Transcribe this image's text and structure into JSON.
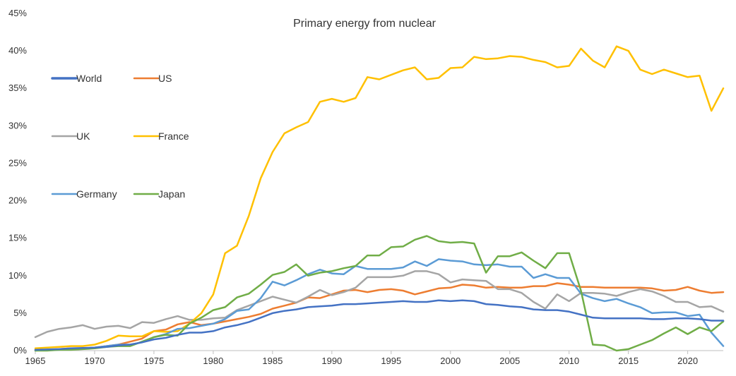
{
  "chart_data": {
    "type": "line",
    "title": "Primary energy from nuclear",
    "xlabel": "",
    "ylabel": "",
    "xlim": [
      1965,
      2023
    ],
    "ylim": [
      0,
      45
    ],
    "x_ticks": [
      1965,
      1970,
      1975,
      1980,
      1985,
      1990,
      1995,
      2000,
      2005,
      2010,
      2015,
      2020
    ],
    "y_ticks": [
      {
        "value": 0,
        "label": "0%"
      },
      {
        "value": 5,
        "label": "5%"
      },
      {
        "value": 10,
        "label": "10%"
      },
      {
        "value": 15,
        "label": "15%"
      },
      {
        "value": 20,
        "label": "20%"
      },
      {
        "value": 25,
        "label": "25%"
      },
      {
        "value": 30,
        "label": "30%"
      },
      {
        "value": 35,
        "label": "35%"
      },
      {
        "value": 40,
        "label": "40%"
      },
      {
        "value": 45,
        "label": "45%"
      }
    ],
    "grid": false,
    "legend_position": "left",
    "x": [
      1965,
      1966,
      1967,
      1968,
      1969,
      1970,
      1971,
      1972,
      1973,
      1974,
      1975,
      1976,
      1977,
      1978,
      1979,
      1980,
      1981,
      1982,
      1983,
      1984,
      1985,
      1986,
      1987,
      1988,
      1989,
      1990,
      1991,
      1992,
      1993,
      1994,
      1995,
      1996,
      1997,
      1998,
      1999,
      2000,
      2001,
      2002,
      2003,
      2004,
      2005,
      2006,
      2007,
      2008,
      2009,
      2010,
      2011,
      2012,
      2013,
      2014,
      2015,
      2016,
      2017,
      2018,
      2019,
      2020,
      2021,
      2022,
      2023
    ],
    "series": [
      {
        "name": "World",
        "color": "#4472c4",
        "width": 3.5,
        "values": [
          0.1,
          0.15,
          0.2,
          0.3,
          0.35,
          0.4,
          0.5,
          0.7,
          0.8,
          1.1,
          1.5,
          1.7,
          2.1,
          2.4,
          2.4,
          2.6,
          3.1,
          3.4,
          3.8,
          4.4,
          5.0,
          5.3,
          5.5,
          5.8,
          5.9,
          6.0,
          6.2,
          6.2,
          6.3,
          6.4,
          6.5,
          6.6,
          6.5,
          6.5,
          6.7,
          6.6,
          6.7,
          6.6,
          6.2,
          6.1,
          5.9,
          5.8,
          5.5,
          5.4,
          5.4,
          5.2,
          4.8,
          4.4,
          4.3,
          4.3,
          4.3,
          4.3,
          4.2,
          4.2,
          4.3,
          4.3,
          4.2,
          4.0,
          4.0
        ]
      },
      {
        "name": "US",
        "color": "#ed7d31",
        "width": 2.5,
        "values": [
          0.1,
          0.1,
          0.2,
          0.3,
          0.3,
          0.4,
          0.6,
          0.8,
          1.2,
          1.6,
          2.6,
          2.8,
          3.5,
          3.8,
          3.4,
          3.6,
          3.9,
          4.2,
          4.5,
          4.9,
          5.6,
          6.0,
          6.4,
          7.1,
          7.0,
          7.5,
          8.0,
          8.1,
          7.8,
          8.1,
          8.2,
          8.0,
          7.5,
          7.9,
          8.3,
          8.4,
          8.8,
          8.7,
          8.4,
          8.5,
          8.4,
          8.4,
          8.6,
          8.6,
          9.0,
          8.8,
          8.5,
          8.5,
          8.4,
          8.4,
          8.4,
          8.4,
          8.3,
          8.0,
          8.1,
          8.5,
          8.0,
          7.7,
          7.8
        ]
      },
      {
        "name": "UK",
        "color": "#a5a5a5",
        "width": 2.5,
        "values": [
          1.8,
          2.5,
          2.9,
          3.1,
          3.4,
          2.9,
          3.2,
          3.3,
          3.0,
          3.8,
          3.7,
          4.2,
          4.6,
          4.1,
          4.1,
          4.3,
          4.4,
          5.4,
          6.0,
          6.6,
          7.2,
          6.8,
          6.4,
          7.2,
          8.1,
          7.4,
          7.8,
          8.4,
          9.8,
          9.8,
          9.8,
          10.0,
          10.6,
          10.6,
          10.2,
          9.1,
          9.5,
          9.4,
          9.3,
          8.2,
          8.2,
          7.7,
          6.5,
          5.6,
          7.5,
          6.6,
          7.7,
          7.7,
          7.6,
          7.3,
          7.8,
          8.2,
          7.9,
          7.3,
          6.5,
          6.5,
          5.8,
          5.9,
          5.2
        ]
      },
      {
        "name": "France",
        "color": "#ffc000",
        "width": 2.5,
        "values": [
          0.3,
          0.4,
          0.5,
          0.6,
          0.6,
          0.8,
          1.3,
          2.0,
          1.9,
          1.9,
          2.6,
          2.5,
          2.6,
          3.6,
          5.0,
          7.5,
          13.0,
          14.0,
          18.0,
          23.0,
          26.5,
          29.0,
          29.8,
          30.5,
          33.2,
          33.6,
          33.2,
          33.7,
          36.5,
          36.2,
          36.8,
          37.4,
          37.8,
          36.2,
          36.4,
          37.7,
          37.8,
          39.2,
          38.9,
          39.0,
          39.3,
          39.2,
          38.8,
          38.5,
          37.8,
          38.0,
          40.3,
          38.7,
          37.8,
          40.6,
          40.0,
          37.5,
          36.9,
          37.5,
          37.0,
          36.5,
          36.7,
          32.0,
          35.0
        ]
      },
      {
        "name": "Germany",
        "color": "#5b9bd5",
        "width": 2.5,
        "values": [
          0.0,
          0.1,
          0.1,
          0.2,
          0.3,
          0.4,
          0.6,
          0.8,
          0.8,
          1.1,
          1.8,
          2.2,
          2.9,
          3.0,
          3.3,
          3.6,
          4.2,
          5.3,
          5.5,
          7.0,
          9.2,
          8.7,
          9.4,
          10.2,
          10.8,
          10.3,
          10.2,
          11.3,
          10.9,
          10.9,
          10.9,
          11.1,
          11.9,
          11.3,
          12.2,
          12.0,
          11.9,
          11.5,
          11.4,
          11.5,
          11.2,
          11.2,
          9.7,
          10.2,
          9.7,
          9.7,
          7.6,
          7.0,
          6.6,
          6.9,
          6.3,
          5.8,
          5.0,
          5.1,
          5.1,
          4.6,
          4.8,
          2.4,
          0.6
        ]
      },
      {
        "name": "Japan",
        "color": "#70ad47",
        "width": 2.5,
        "values": [
          0.0,
          0.0,
          0.1,
          0.1,
          0.2,
          0.3,
          0.5,
          0.6,
          0.6,
          1.2,
          1.8,
          2.1,
          2.0,
          3.6,
          4.4,
          5.4,
          5.8,
          7.1,
          7.6,
          8.8,
          10.1,
          10.5,
          11.5,
          10.0,
          10.4,
          10.6,
          11.0,
          11.3,
          12.7,
          12.7,
          13.8,
          13.9,
          14.8,
          15.3,
          14.6,
          14.4,
          14.5,
          14.3,
          10.4,
          12.6,
          12.6,
          13.1,
          12.0,
          11.0,
          13.0,
          13.0,
          8.0,
          0.8,
          0.7,
          0.0,
          0.2,
          0.8,
          1.4,
          2.3,
          3.1,
          2.2,
          3.1,
          2.6,
          3.9
        ]
      }
    ]
  }
}
